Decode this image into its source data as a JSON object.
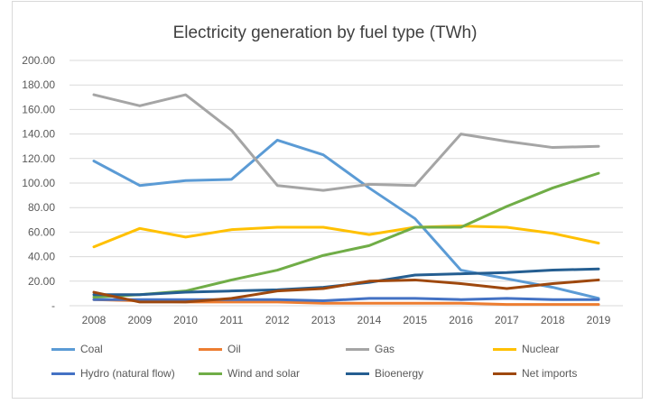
{
  "chart_data": {
    "type": "line",
    "title": "Electricity generation by fuel type (TWh)",
    "xlabel": "",
    "ylabel": "",
    "ylim": [
      0,
      200
    ],
    "yticks": [
      "-",
      "20.00",
      "40.00",
      "60.00",
      "80.00",
      "100.00",
      "120.00",
      "140.00",
      "160.00",
      "180.00",
      "200.00"
    ],
    "grid": true,
    "legend": "bottom",
    "categories": [
      "2008",
      "2009",
      "2010",
      "2011",
      "2012",
      "2013",
      "2014",
      "2015",
      "2016",
      "2017",
      "2018",
      "2019"
    ],
    "series": [
      {
        "name": "Coal",
        "color": "#5b9bd5",
        "values": [
          118,
          98,
          102,
          103,
          135,
          123,
          96,
          71,
          29,
          22,
          15,
          6
        ]
      },
      {
        "name": "Oil",
        "color": "#ed7d31",
        "values": [
          5,
          4,
          3,
          3,
          3,
          2,
          2,
          2,
          2,
          1,
          1,
          1
        ]
      },
      {
        "name": "Gas",
        "color": "#a5a5a5",
        "values": [
          172,
          163,
          172,
          143,
          98,
          94,
          99,
          98,
          140,
          134,
          129,
          130
        ]
      },
      {
        "name": "Nuclear",
        "color": "#ffc000",
        "values": [
          48,
          63,
          56,
          62,
          64,
          64,
          58,
          64,
          65,
          64,
          59,
          51
        ]
      },
      {
        "name": "Hydro (natural flow)",
        "color": "#4472c4",
        "values": [
          5,
          5,
          5,
          5,
          5,
          4,
          6,
          6,
          5,
          6,
          5,
          5
        ]
      },
      {
        "name": "Wind and solar",
        "color": "#70ad47",
        "values": [
          7,
          9,
          12,
          21,
          29,
          41,
          49,
          64,
          64,
          81,
          96,
          108
        ]
      },
      {
        "name": "Bioenergy",
        "color": "#255e91",
        "values": [
          9,
          9,
          11,
          12,
          13,
          15,
          19,
          25,
          26,
          27,
          29,
          30
        ]
      },
      {
        "name": "Net imports",
        "color": "#9e480e",
        "values": [
          11,
          3,
          3,
          6,
          12,
          14,
          20,
          21,
          18,
          14,
          18,
          21
        ]
      }
    ]
  }
}
